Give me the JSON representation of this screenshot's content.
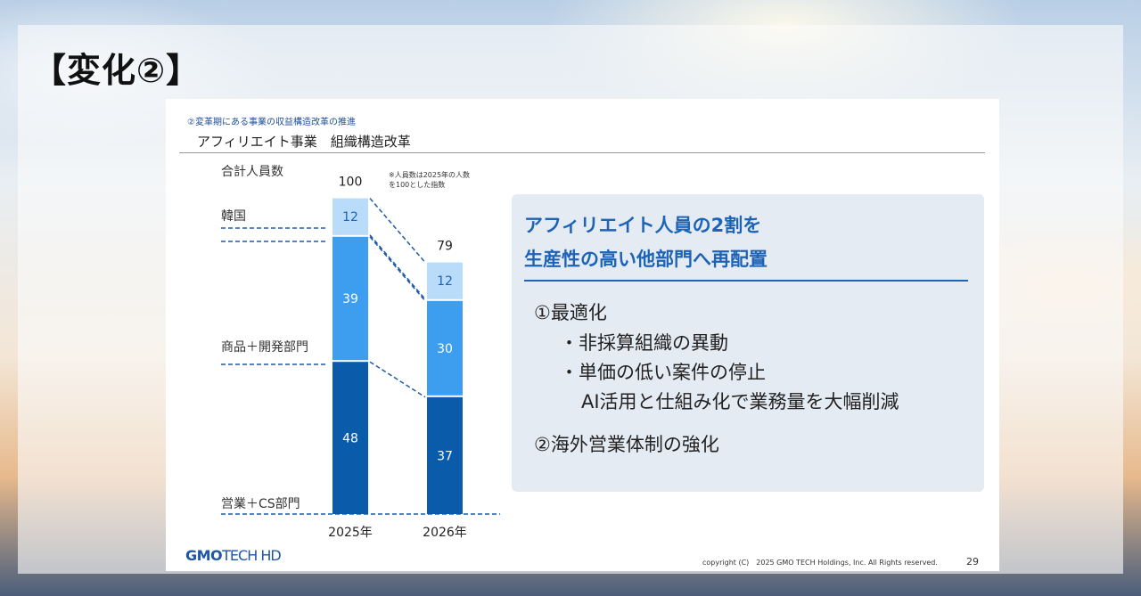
{
  "page": {
    "heading": "【変化②】"
  },
  "slide": {
    "eyebrow": "②変革期にある事業の収益構造改革の推進",
    "title": "アフィリエイト事業　組織構造改革",
    "note_line1": "※人員数は2025年の人数",
    "note_line2": "を100とした指数",
    "logo_gmo": "GMO",
    "logo_tech": "TECH HD",
    "copyright": "copyright (C)　2025 GMO TECH Holdings, Inc. All Rights reserved.",
    "page_number": "29"
  },
  "chart_data": {
    "type": "bar",
    "stacked": true,
    "categories": [
      "2025年",
      "2026年"
    ],
    "totals": [
      100,
      79
    ],
    "total_label": "合計人員数",
    "series": [
      {
        "name": "営業＋CS部門",
        "values": [
          48,
          37
        ],
        "color": "#0b5bab"
      },
      {
        "name": "商品＋開発部門",
        "values": [
          39,
          30
        ],
        "color": "#3d9ef0"
      },
      {
        "name": "韓国",
        "values": [
          12,
          12
        ],
        "color": "#b9dcfb"
      }
    ],
    "label_colors": [
      "#ffffff",
      "#ffffff",
      "#1b64b6"
    ],
    "connector_color": "#1f5ca6"
  },
  "callout": {
    "headline_line1": "アフィリエイト人員の2割を",
    "headline_line2": "生産性の高い他部門へ再配置",
    "item1_title": "①最適化",
    "item1_sub1": "・非採算組織の異動",
    "item1_sub2": "・単価の低い案件の停止",
    "item1_sub3": "AI活用と仕組み化で業務量を大幅削減",
    "item2_title": "②海外営業体制の強化"
  }
}
